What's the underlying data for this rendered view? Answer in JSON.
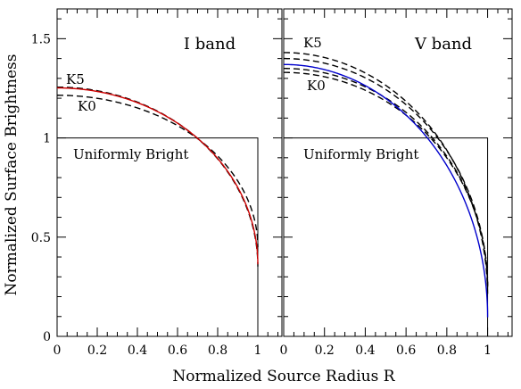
{
  "figure": {
    "ylabel": "Normalized Surface Brightness",
    "xlabel": "Normalized Source Radius R"
  },
  "chart_data": [
    {
      "type": "line",
      "title": "I band",
      "xlim": [
        0,
        1.12
      ],
      "ylim": [
        0,
        1.65
      ],
      "xticks": [
        "0",
        "0.2",
        "0.4",
        "0.6",
        "0.8",
        "1"
      ],
      "yticks": [
        "0",
        "0.5",
        "1",
        "1.5"
      ],
      "annotations": {
        "upper": "K5",
        "lower": "K0",
        "box": "Uniformly Bright"
      },
      "series": [
        {
          "name": "Uniformly Bright",
          "style": "solid",
          "color": "#000000",
          "x": [
            0,
            1,
            1
          ],
          "y": [
            1,
            1,
            0
          ]
        },
        {
          "name": "K5",
          "style": "dashed",
          "color": "#000000",
          "c": 1.256,
          "u": 0.72
        },
        {
          "name": "K0",
          "style": "dashed",
          "color": "#000000",
          "c": 1.215,
          "u": 0.63
        },
        {
          "style": "solid",
          "color": "#cc0000",
          "c": 1.252,
          "u": 0.71
        }
      ]
    },
    {
      "type": "line",
      "title": "V band",
      "xlim": [
        0,
        1.12
      ],
      "ylim": [
        0,
        1.65
      ],
      "xticks": [
        "0",
        "0.2",
        "0.4",
        "0.6",
        "0.8",
        "1"
      ],
      "yticks": [
        "0",
        "0.5",
        "1",
        "1.5"
      ],
      "annotations": {
        "upper": "K5",
        "lower": "K0",
        "box": "Uniformly Bright"
      },
      "series": [
        {
          "name": "Uniformly Bright",
          "style": "solid",
          "color": "#000000",
          "x": [
            0,
            1,
            1
          ],
          "y": [
            1,
            1,
            0
          ]
        },
        {
          "name": "K5",
          "style": "dashed",
          "color": "#000000",
          "c": 1.43,
          "u": 0.86
        },
        {
          "style": "dashed",
          "color": "#000000",
          "c": 1.4,
          "u": 0.83
        },
        {
          "style": "dashed",
          "color": "#000000",
          "c": 1.35,
          "u": 0.82
        },
        {
          "name": "K0",
          "style": "dashed",
          "color": "#000000",
          "c": 1.33,
          "u": 0.81
        },
        {
          "style": "solid",
          "color": "#0000cc",
          "c": 1.37,
          "u": 0.93
        }
      ]
    }
  ]
}
